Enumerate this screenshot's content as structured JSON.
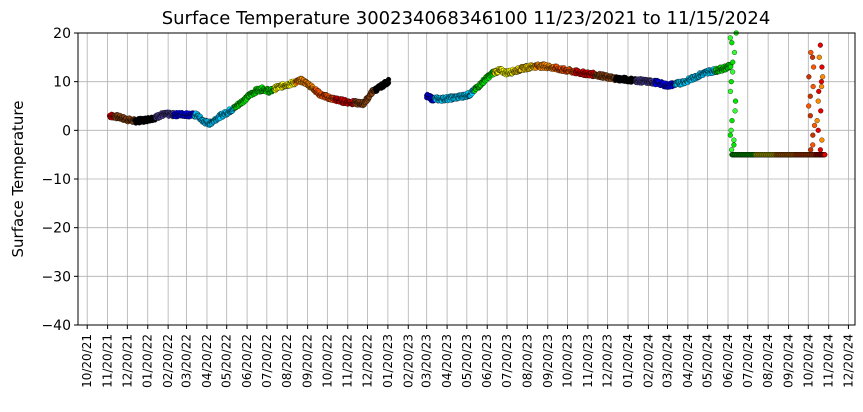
{
  "chart_data": {
    "type": "scatter",
    "title": "Surface Temperature 300234068346100  11/23/2021 to 11/15/2024",
    "xlabel": "",
    "ylabel": "Surface Temperature",
    "ylim": [
      -40,
      20
    ],
    "yticks": [
      20,
      10,
      0,
      -10,
      -20,
      -30,
      -40
    ],
    "yticklabels": [
      "20",
      "10",
      "0",
      "−10",
      "−20",
      "−30",
      "−40"
    ],
    "xlim": [
      "2021-10-06",
      "2024-12-30"
    ],
    "xticks": [
      "2021-10-20",
      "2021-11-20",
      "2021-12-20",
      "2022-01-20",
      "2022-02-20",
      "2022-03-20",
      "2022-04-20",
      "2022-05-20",
      "2022-06-20",
      "2022-07-20",
      "2022-08-20",
      "2022-09-20",
      "2022-10-20",
      "2022-11-20",
      "2022-12-20",
      "2023-01-20",
      "2023-02-20",
      "2023-03-20",
      "2023-04-20",
      "2023-05-20",
      "2023-06-20",
      "2023-07-20",
      "2023-08-20",
      "2023-09-20",
      "2023-10-20",
      "2023-11-20",
      "2023-12-20",
      "2024-01-20",
      "2024-02-20",
      "2024-03-20",
      "2024-04-20",
      "2024-05-20",
      "2024-06-20",
      "2024-07-20",
      "2024-08-20",
      "2024-09-20",
      "2024-10-20",
      "2024-11-20",
      "2024-12-20"
    ],
    "xticklabels": [
      "10/20/21",
      "11/20/21",
      "12/20/21",
      "01/20/22",
      "02/20/22",
      "03/20/22",
      "04/20/22",
      "05/20/22",
      "06/20/22",
      "07/20/22",
      "08/20/22",
      "09/20/22",
      "10/20/22",
      "11/20/22",
      "12/20/22",
      "01/20/23",
      "02/20/23",
      "03/20/23",
      "04/20/23",
      "05/20/23",
      "06/20/23",
      "07/20/23",
      "08/20/23",
      "09/20/23",
      "10/20/23",
      "11/20/23",
      "12/20/23",
      "01/20/24",
      "02/20/24",
      "03/20/24",
      "04/20/24",
      "05/20/24",
      "06/20/24",
      "07/20/24",
      "08/20/24",
      "09/20/24",
      "10/20/24",
      "11/20/24",
      "12/20/24"
    ],
    "grid": true,
    "legend": "none",
    "trace": [
      [
        "2021-11-23",
        3.0
      ],
      [
        "2021-12-01",
        2.9
      ],
      [
        "2021-12-10",
        2.6
      ],
      [
        "2021-12-20",
        2.2
      ],
      [
        "2022-01-01",
        1.9
      ],
      [
        "2022-01-15",
        2.1
      ],
      [
        "2022-02-01",
        2.6
      ],
      [
        "2022-02-10",
        3.2
      ],
      [
        "2022-02-20",
        3.3
      ],
      [
        "2022-03-01",
        3.2
      ],
      [
        "2022-03-15",
        3.3
      ],
      [
        "2022-03-25",
        3.2
      ],
      [
        "2022-04-05",
        3.1
      ],
      [
        "2022-04-15",
        1.8
      ],
      [
        "2022-04-25",
        1.4
      ],
      [
        "2022-05-05",
        2.5
      ],
      [
        "2022-05-20",
        3.6
      ],
      [
        "2022-06-01",
        4.6
      ],
      [
        "2022-06-15",
        6.2
      ],
      [
        "2022-06-25",
        7.3
      ],
      [
        "2022-07-05",
        8.2
      ],
      [
        "2022-07-15",
        8.5
      ],
      [
        "2022-07-25",
        8.0
      ],
      [
        "2022-08-05",
        8.8
      ],
      [
        "2022-08-20",
        9.4
      ],
      [
        "2022-09-01",
        9.8
      ],
      [
        "2022-09-10",
        10.3
      ],
      [
        "2022-09-20",
        9.6
      ],
      [
        "2022-10-01",
        8.4
      ],
      [
        "2022-10-10",
        7.3
      ],
      [
        "2022-10-25",
        6.6
      ],
      [
        "2022-11-05",
        6.2
      ],
      [
        "2022-11-20",
        5.8
      ],
      [
        "2022-12-05",
        5.6
      ],
      [
        "2022-12-15",
        5.5
      ],
      [
        "2022-12-20",
        6.5
      ],
      [
        "2022-12-28",
        8.0
      ],
      [
        "2023-01-05",
        8.6
      ],
      [
        "2023-01-15",
        9.5
      ],
      [
        "2023-01-22",
        10.2
      ],
      null,
      [
        "2023-03-20",
        7.0
      ],
      [
        "2023-03-28",
        6.5
      ],
      [
        "2023-04-10",
        6.4
      ],
      [
        "2023-04-25",
        6.6
      ],
      [
        "2023-05-10",
        6.9
      ],
      [
        "2023-05-25",
        7.4
      ],
      [
        "2023-06-05",
        8.8
      ],
      [
        "2023-06-20",
        10.8
      ],
      [
        "2023-07-01",
        12.0
      ],
      [
        "2023-07-10",
        12.3
      ],
      [
        "2023-07-20",
        11.8
      ],
      [
        "2023-08-01",
        12.2
      ],
      [
        "2023-08-15",
        12.8
      ],
      [
        "2023-09-01",
        13.2
      ],
      [
        "2023-09-15",
        13.2
      ],
      [
        "2023-10-01",
        12.8
      ],
      [
        "2023-10-15",
        12.4
      ],
      [
        "2023-11-01",
        12.0
      ],
      [
        "2023-11-20",
        11.6
      ],
      [
        "2023-12-05",
        11.4
      ],
      [
        "2023-12-20",
        10.9
      ],
      [
        "2024-01-05",
        10.6
      ],
      [
        "2024-01-20",
        10.4
      ],
      [
        "2024-02-05",
        10.2
      ],
      [
        "2024-02-20",
        10.0
      ],
      [
        "2024-03-05",
        9.8
      ],
      [
        "2024-03-20",
        9.2
      ],
      [
        "2024-04-05",
        9.6
      ],
      [
        "2024-04-20",
        10.2
      ],
      [
        "2024-05-05",
        11.2
      ],
      [
        "2024-05-20",
        12.0
      ],
      [
        "2024-06-05",
        12.4
      ],
      [
        "2024-06-20",
        13.0
      ],
      [
        "2024-06-25",
        13.5
      ],
      null,
      [
        "2024-06-26",
        -5.0
      ],
      [
        "2024-07-20",
        -5.0
      ],
      [
        "2024-08-20",
        -5.0
      ],
      [
        "2024-09-20",
        -5.0
      ],
      [
        "2024-10-20",
        -5.0
      ],
      [
        "2024-11-01",
        -5.0
      ],
      [
        "2024-11-15",
        -5.0
      ]
    ],
    "scatter_clusters": [
      {
        "date": "2024-06-28",
        "values": [
          20,
          19,
          18,
          16,
          14,
          12,
          10,
          8,
          6,
          4,
          2,
          0,
          -1,
          -2,
          -3,
          -4
        ]
      },
      {
        "date": "2024-10-25",
        "values": [
          16,
          15,
          13,
          11,
          9,
          7,
          5,
          3,
          1,
          -1,
          -3,
          -4
        ]
      },
      {
        "date": "2024-11-07",
        "values": [
          17.5,
          15,
          13,
          11,
          10,
          9,
          8,
          6,
          4,
          2,
          0,
          -2,
          -4
        ]
      }
    ],
    "color_cycle": [
      "#e60000",
      "#8b4513",
      "#000000",
      "#483d8b",
      "#0000ff",
      "#00ccff",
      "#00e600",
      "#ffff00",
      "#ff8c00"
    ],
    "segment_colors": {
      "2021-11": "#e60000",
      "2021-12": "#8b4513",
      "2022-01": "#000000",
      "2022-02": "#483d8b",
      "2022-03": "#0000ff",
      "2022-04": "#00ccff",
      "2022-05": "#00ccff",
      "2022-06": "#00e600",
      "2022-07": "#00e600",
      "2022-08": "#ffff00",
      "2022-09": "#ff8c00",
      "2022-10": "#ff5500",
      "2022-11": "#e60000",
      "2022-12": "#8b4513",
      "2023-01": "#000000",
      "2023-03": "#0000ff",
      "2023-04": "#00ccff",
      "2023-05": "#00ccff",
      "2023-06": "#00e600",
      "2023-07": "#ffff00",
      "2023-08": "#ffd700",
      "2023-09": "#ff8c00",
      "2023-10": "#ff5500",
      "2023-11": "#e60000",
      "2023-12": "#8b4513",
      "2024-01": "#000000",
      "2024-02": "#483d8b",
      "2024-03": "#0000ff",
      "2024-04": "#00ccff",
      "2024-05": "#00ccff",
      "2024-06": "#00e600",
      "2024-07": "#00e600",
      "2024-08": "#ffff00",
      "2024-09": "#ff8c00",
      "2024-10": "#ff5500",
      "2024-11": "#e60000"
    }
  }
}
